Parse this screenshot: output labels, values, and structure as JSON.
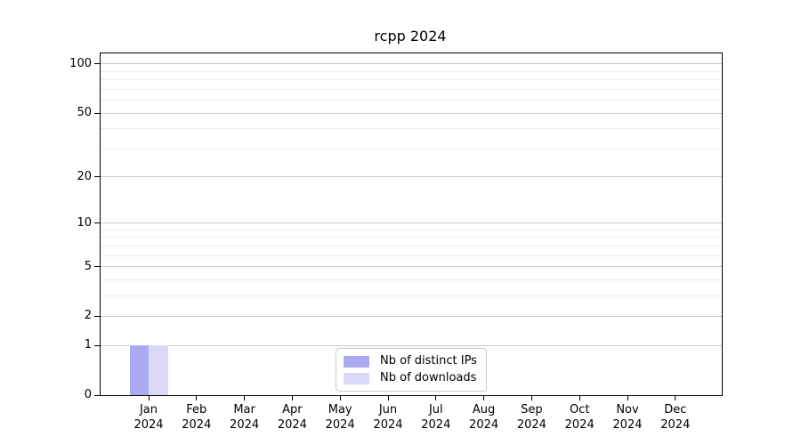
{
  "chart_data": {
    "type": "bar",
    "title": "rcpp 2024",
    "categories": [
      "Jan",
      "Feb",
      "Mar",
      "Apr",
      "May",
      "Jun",
      "Jul",
      "Aug",
      "Sep",
      "Oct",
      "Nov",
      "Dec"
    ],
    "year_label": "2024",
    "series": [
      {
        "name": "Nb of distinct IPs",
        "color": "#aaaaf0",
        "values": [
          1,
          0,
          0,
          0,
          0,
          0,
          0,
          0,
          0,
          0,
          0,
          0
        ]
      },
      {
        "name": "Nb of downloads",
        "color": "#d9d9f7",
        "values": [
          1,
          0,
          0,
          0,
          0,
          0,
          0,
          0,
          0,
          0,
          0,
          0
        ]
      }
    ],
    "xlabel": "",
    "ylabel": "",
    "yscale": "log1p",
    "ylim": [
      0,
      116
    ],
    "ytick_values": [
      0,
      1,
      2,
      5,
      10,
      20,
      50,
      100
    ],
    "minor_gridline_values": [
      3,
      4,
      6,
      7,
      8,
      9,
      30,
      40,
      60,
      70,
      80,
      90
    ],
    "grid": "horizontal",
    "legend_position": "lower center",
    "colors": {
      "grid_major": "#c9c9c9",
      "grid_minor": "#ebebeb",
      "axis": "#000000",
      "background": "#ffffff"
    }
  }
}
